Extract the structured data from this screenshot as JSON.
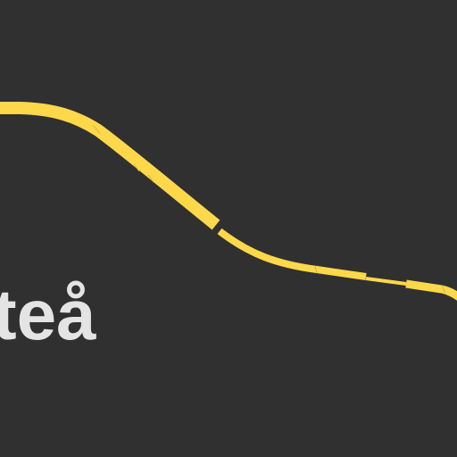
{
  "map": {
    "place_label": "teå",
    "road_color": "#fcd84a",
    "road_edge_color": "#d6b43a",
    "background_color": "#303030",
    "label_color": "#e4e4e4"
  }
}
